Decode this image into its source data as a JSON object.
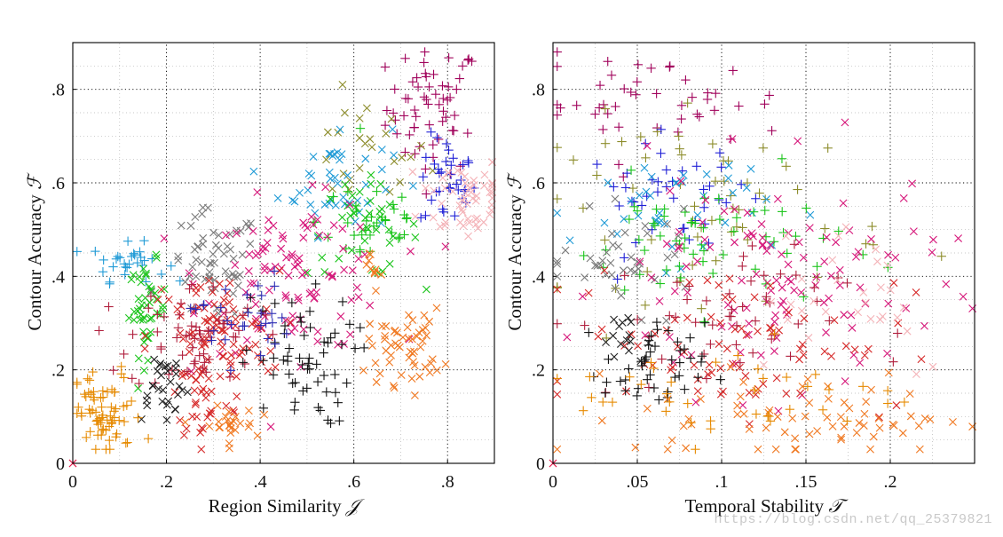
{
  "watermark": "https://blog.csdn.net/qq_25379821",
  "chart_data": [
    {
      "type": "scatter",
      "xlabel": "Region Similarity",
      "xlabel_symbol": "𝒥",
      "ylabel": "Contour Accuracy",
      "ylabel_symbol": "ℱ",
      "xlim": [
        0,
        0.9
      ],
      "ylim": [
        0,
        0.9
      ],
      "xticks": [
        0,
        0.2,
        0.4,
        0.6,
        0.8
      ],
      "xtick_labels": [
        "0",
        ".2",
        ".4",
        ".6",
        ".8"
      ],
      "yticks": [
        0,
        0.2,
        0.4,
        0.6,
        0.8
      ],
      "ytick_labels": [
        "0",
        ".2",
        ".4",
        ".6",
        ".8"
      ],
      "grid": true,
      "origin_marker": {
        "x": 0,
        "y": 0,
        "marker": "x",
        "color": "#e41a4b"
      },
      "series": [
        {
          "name": "purple-plus",
          "marker": "+",
          "color": "#a0005a",
          "clusters": [
            {
              "cx": 0.77,
              "cy": 0.76,
              "sx": 0.05,
              "sy": 0.07,
              "n": 60
            }
          ]
        },
        {
          "name": "olive-x",
          "marker": "x",
          "color": "#8c8c2a",
          "clusters": [
            {
              "cx": 0.62,
              "cy": 0.66,
              "sx": 0.07,
              "sy": 0.06,
              "n": 25
            }
          ]
        },
        {
          "name": "blue-plus",
          "marker": "+",
          "color": "#1f1fd6",
          "clusters": [
            {
              "cx": 0.8,
              "cy": 0.6,
              "sx": 0.03,
              "sy": 0.05,
              "n": 35
            }
          ]
        },
        {
          "name": "pink-x",
          "marker": "x",
          "color": "#f4b3b8",
          "clusters": [
            {
              "cx": 0.84,
              "cy": 0.57,
              "sx": 0.05,
              "sy": 0.05,
              "n": 55
            }
          ]
        },
        {
          "name": "skyblue-plus",
          "marker": "+",
          "color": "#1f9ad6",
          "clusters": [
            {
              "cx": 0.12,
              "cy": 0.43,
              "sx": 0.04,
              "sy": 0.02,
              "n": 30
            }
          ]
        },
        {
          "name": "skyblue-x",
          "marker": "x",
          "color": "#1f9ad6",
          "clusters": [
            {
              "cx": 0.56,
              "cy": 0.61,
              "sx": 0.06,
              "sy": 0.06,
              "n": 45
            }
          ]
        },
        {
          "name": "green-x",
          "marker": "x",
          "color": "#19c419",
          "clusters": [
            {
              "cx": 0.16,
              "cy": 0.33,
              "sx": 0.02,
              "sy": 0.05,
              "n": 45
            },
            {
              "cx": 0.62,
              "cy": 0.5,
              "sx": 0.06,
              "sy": 0.05,
              "n": 40
            }
          ]
        },
        {
          "name": "green-plus",
          "marker": "+",
          "color": "#19c419",
          "clusters": [
            {
              "cx": 0.64,
              "cy": 0.52,
              "sx": 0.06,
              "sy": 0.06,
              "n": 35
            }
          ]
        },
        {
          "name": "gray-x",
          "marker": "x",
          "color": "#7a7a7a",
          "clusters": [
            {
              "cx": 0.3,
              "cy": 0.42,
              "sx": 0.05,
              "sy": 0.06,
              "n": 60
            }
          ]
        },
        {
          "name": "magenta-x",
          "marker": "x",
          "color": "#d6177a",
          "clusters": [
            {
              "cx": 0.48,
              "cy": 0.4,
              "sx": 0.1,
              "sy": 0.08,
              "n": 110
            }
          ]
        },
        {
          "name": "red-x",
          "marker": "x",
          "color": "#d62828",
          "clusters": [
            {
              "cx": 0.3,
              "cy": 0.27,
              "sx": 0.07,
              "sy": 0.07,
              "n": 90
            },
            {
              "cx": 0.28,
              "cy": 0.14,
              "sx": 0.03,
              "sy": 0.05,
              "n": 30
            }
          ]
        },
        {
          "name": "darkred-plus",
          "marker": "+",
          "color": "#b01e3c",
          "clusters": [
            {
              "cx": 0.26,
              "cy": 0.27,
              "sx": 0.07,
              "sy": 0.06,
              "n": 60
            }
          ]
        },
        {
          "name": "black-x",
          "marker": "x",
          "color": "#222222",
          "clusters": [
            {
              "cx": 0.19,
              "cy": 0.17,
              "sx": 0.03,
              "sy": 0.04,
              "n": 30
            }
          ]
        },
        {
          "name": "black-plus",
          "marker": "+",
          "color": "#111111",
          "clusters": [
            {
              "cx": 0.48,
              "cy": 0.22,
              "sx": 0.06,
              "sy": 0.07,
              "n": 60
            }
          ]
        },
        {
          "name": "darkblue-plus",
          "marker": "+",
          "color": "#2a2ab4",
          "clusters": [
            {
              "cx": 0.36,
              "cy": 0.31,
              "sx": 0.05,
              "sy": 0.05,
              "n": 30
            }
          ]
        },
        {
          "name": "orange-plus",
          "marker": "+",
          "color": "#e68a00",
          "clusters": [
            {
              "cx": 0.07,
              "cy": 0.1,
              "sx": 0.04,
              "sy": 0.05,
              "n": 70
            }
          ]
        },
        {
          "name": "orange-x",
          "marker": "x",
          "color": "#f07820",
          "clusters": [
            {
              "cx": 0.71,
              "cy": 0.25,
              "sx": 0.04,
              "sy": 0.04,
              "n": 55
            },
            {
              "cx": 0.33,
              "cy": 0.08,
              "sx": 0.03,
              "sy": 0.02,
              "n": 25
            },
            {
              "cx": 0.64,
              "cy": 0.43,
              "sx": 0.02,
              "sy": 0.03,
              "n": 10
            }
          ]
        }
      ]
    },
    {
      "type": "scatter",
      "xlabel": "Temporal Stability",
      "xlabel_symbol": "𝒯",
      "ylabel": "Contour Accuracy",
      "ylabel_symbol": "ℱ",
      "xlim": [
        0,
        0.25
      ],
      "ylim": [
        0,
        0.9
      ],
      "xticks": [
        0,
        0.05,
        0.1,
        0.15,
        0.2
      ],
      "xtick_labels": [
        "0",
        ".05",
        ".1",
        ".15",
        ".2"
      ],
      "yticks": [
        0,
        0.2,
        0.4,
        0.6,
        0.8
      ],
      "ytick_labels": [
        "0",
        ".2",
        ".4",
        ".6",
        ".8"
      ],
      "grid": true,
      "origin_marker": {
        "x": 0,
        "y": 0,
        "marker": "x",
        "color": "#e41a4b"
      },
      "series": [
        {
          "name": "purple-plus",
          "marker": "+",
          "color": "#a0005a",
          "clusters": [
            {
              "cx": 0.06,
              "cy": 0.77,
              "sx": 0.04,
              "sy": 0.05,
              "n": 45
            }
          ]
        },
        {
          "name": "olive-plus",
          "marker": "+",
          "color": "#8c8c2a",
          "clusters": [
            {
              "cx": 0.1,
              "cy": 0.55,
              "sx": 0.05,
              "sy": 0.1,
              "n": 60
            }
          ]
        },
        {
          "name": "blue-plus",
          "marker": "+",
          "color": "#1f1fd6",
          "clusters": [
            {
              "cx": 0.07,
              "cy": 0.57,
              "sx": 0.025,
              "sy": 0.06,
              "n": 40
            }
          ]
        },
        {
          "name": "skyblue-x",
          "marker": "x",
          "color": "#1f9ad6",
          "clusters": [
            {
              "cx": 0.07,
              "cy": 0.55,
              "sx": 0.03,
              "sy": 0.06,
              "n": 40
            }
          ]
        },
        {
          "name": "green-plus",
          "marker": "+",
          "color": "#19c419",
          "clusters": [
            {
              "cx": 0.09,
              "cy": 0.47,
              "sx": 0.04,
              "sy": 0.07,
              "n": 60
            }
          ]
        },
        {
          "name": "gray-x",
          "marker": "x",
          "color": "#7a7a7a",
          "clusters": [
            {
              "cx": 0.045,
              "cy": 0.43,
              "sx": 0.02,
              "sy": 0.05,
              "n": 40
            }
          ]
        },
        {
          "name": "magenta-x",
          "marker": "x",
          "color": "#d6177a",
          "clusters": [
            {
              "cx": 0.13,
              "cy": 0.38,
              "sx": 0.05,
              "sy": 0.12,
              "n": 120
            }
          ]
        },
        {
          "name": "red-x",
          "marker": "x",
          "color": "#d62828",
          "clusters": [
            {
              "cx": 0.11,
              "cy": 0.27,
              "sx": 0.05,
              "sy": 0.08,
              "n": 80
            }
          ]
        },
        {
          "name": "darkred-plus",
          "marker": "+",
          "color": "#b01e3c",
          "clusters": [
            {
              "cx": 0.09,
              "cy": 0.3,
              "sx": 0.04,
              "sy": 0.08,
              "n": 50
            }
          ]
        },
        {
          "name": "black-plus",
          "marker": "+",
          "color": "#111111",
          "clusters": [
            {
              "cx": 0.06,
              "cy": 0.2,
              "sx": 0.015,
              "sy": 0.05,
              "n": 45
            }
          ]
        },
        {
          "name": "black-x",
          "marker": "x",
          "color": "#222222",
          "clusters": [
            {
              "cx": 0.04,
              "cy": 0.26,
              "sx": 0.008,
              "sy": 0.03,
              "n": 15
            }
          ]
        },
        {
          "name": "orange-x",
          "marker": "x",
          "color": "#f07820",
          "clusters": [
            {
              "cx": 0.15,
              "cy": 0.1,
              "sx": 0.05,
              "sy": 0.05,
              "n": 70
            }
          ]
        },
        {
          "name": "orange-plus",
          "marker": "+",
          "color": "#e68a00",
          "clusters": [
            {
              "cx": 0.11,
              "cy": 0.15,
              "sx": 0.05,
              "sy": 0.06,
              "n": 40
            }
          ]
        },
        {
          "name": "pink-x",
          "marker": "x",
          "color": "#f4b3b8",
          "clusters": [
            {
              "cx": 0.17,
              "cy": 0.38,
              "sx": 0.04,
              "sy": 0.1,
              "n": 30
            }
          ]
        }
      ]
    }
  ]
}
